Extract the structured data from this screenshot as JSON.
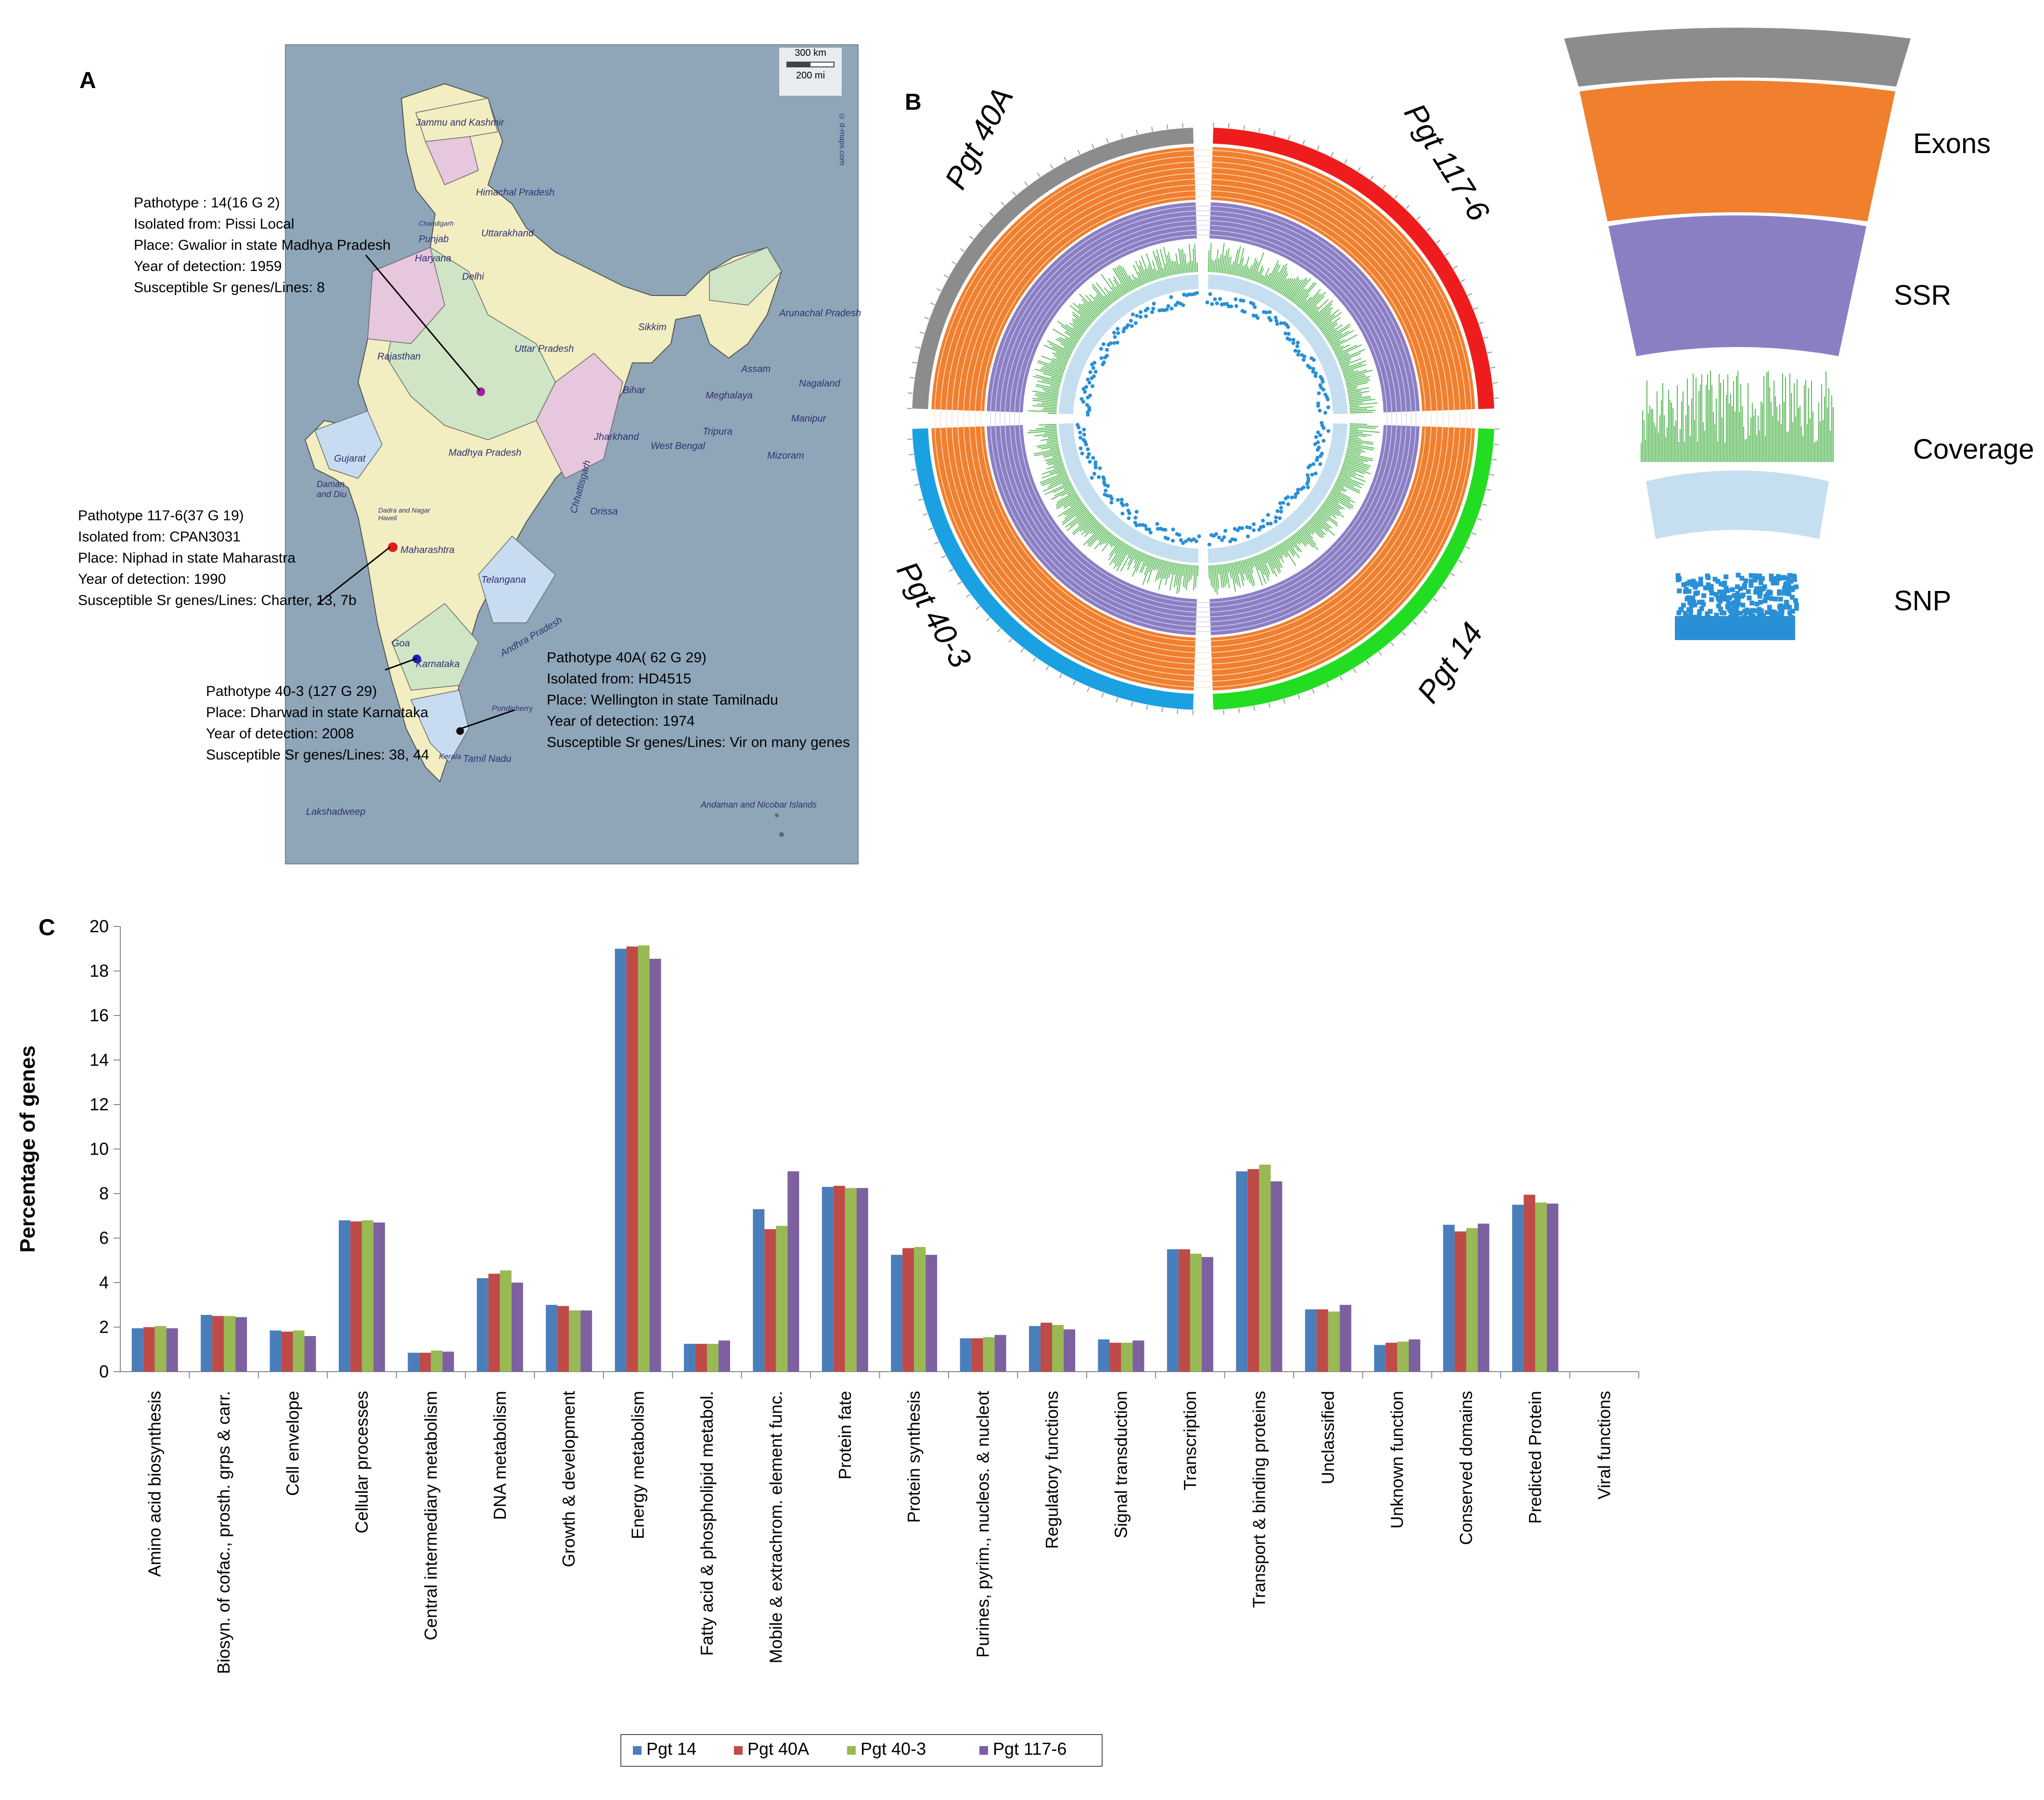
{
  "panels": {
    "a": "A",
    "b": "B",
    "c": "C"
  },
  "map": {
    "scale_km": "300 km",
    "scale_mi": "200 mi",
    "watermark": "© d-maps.com",
    "regions": [
      "Jammu and Kashmir",
      "Himachal Pradesh",
      "Chandigarh",
      "Punjab",
      "Uttarakhand",
      "Haryana",
      "Delhi",
      "Rajasthan",
      "Uttar Pradesh",
      "Sikkim",
      "Arunachal Pradesh",
      "Assam",
      "Nagaland",
      "Bihar",
      "Meghalaya",
      "Manipur",
      "Tripura",
      "Mizoram",
      "Jharkhand",
      "West Bengal",
      "Gujarat",
      "Madhya Pradesh",
      "Chhattisgarh",
      "Orissa",
      "Daman and Diu",
      "Dadra and Nagar Haveli",
      "Maharashtra",
      "Telangana",
      "Goa",
      "Karnataka",
      "Andhra Pradesh",
      "Pondicherry",
      "Kerala",
      "Tamil Nadu",
      "Lakshadweep",
      "Andaman and Nicobar Islands"
    ],
    "pathotypes": [
      {
        "lines": [
          "Pathotype : 14(16 G 2)",
          "Isolated from: Pissi Local",
          "Place: Gwalior in state  Madhya Pradesh",
          "Year of detection: 1959",
          "Susceptible Sr genes/Lines: 8"
        ]
      },
      {
        "lines": [
          "Pathotype 117-6(37 G 19)",
          "Isolated from: CPAN3031",
          "Place: Niphad in state  Maharastra",
          "Year of detection: 1990",
          "Susceptible Sr genes/Lines: Charter, 13, 7b"
        ]
      },
      {
        "lines": [
          "Pathotype 40-3 (127 G 29)",
          "Place: Dharwad in state Karnataka",
          "Year of detection: 2008",
          "Susceptible Sr genes/Lines: 38, 44"
        ]
      },
      {
        "lines": [
          "Pathotype 40A(  62 G 29)",
          "Isolated from: HD4515",
          "Place: Wellington in state  Tamilnadu",
          "Year of detection: 1974",
          "Susceptible Sr genes/Lines: Vir on many genes"
        ]
      }
    ]
  },
  "circos": {
    "genomes": [
      {
        "label": "Pgt  40A",
        "color": "#8c8c8c"
      },
      {
        "label": "Pgt  117-6",
        "color": "#ee1c1c"
      },
      {
        "label": "Pgt 14",
        "color": "#22dd22"
      },
      {
        "label": "Pgt  40-3",
        "color": "#1ba1e2"
      }
    ],
    "tracks": [
      "Exons",
      "SSR",
      "Coverage",
      "SNP"
    ],
    "track_colors": {
      "exons": "#f07f2e",
      "ssr": "#8b7fc4",
      "coverage": "#5dbb5d",
      "snp": "#2a90d6",
      "band": "#c6dff0"
    }
  },
  "chart_data": {
    "type": "bar",
    "ylabel": "Percentage of genes",
    "xlabel": "",
    "ylim": [
      0,
      20
    ],
    "yticks": [
      0,
      2,
      4,
      6,
      8,
      10,
      12,
      14,
      16,
      18,
      20
    ],
    "categories": [
      "Amino acid biosynthesis",
      "Biosyn. of cofac., prosth. grps & carr.",
      "Cell envelope",
      "Cellular processes",
      "Central intermediary metabolism",
      "DNA metabolism",
      "Growth & development",
      "Energy metabolism",
      "Fatty acid & phospholipid metabol.",
      "Mobile & extrachrom. element func.",
      "Protein fate",
      "Protein synthesis",
      "Purines, pyrim., nucleos. & nucleot",
      "Regulatory functions",
      "Signal transduction",
      "Transcription",
      "Transport & binding proteins",
      "Unclassified",
      "Unknown function",
      "Conserved domains",
      "Predicted Protein",
      "Viral functions"
    ],
    "series": [
      {
        "name": "Pgt 14",
        "color": "#4a7ebb",
        "values": [
          1.95,
          2.55,
          1.85,
          6.8,
          0.85,
          4.2,
          3.0,
          19.0,
          1.25,
          7.3,
          8.3,
          5.25,
          1.5,
          2.05,
          1.45,
          5.5,
          9.0,
          2.8,
          1.2,
          6.6,
          7.5,
          0
        ]
      },
      {
        "name": "Pgt  40A",
        "color": "#be4b48",
        "values": [
          2.0,
          2.5,
          1.8,
          6.75,
          0.85,
          4.4,
          2.95,
          19.1,
          1.25,
          6.4,
          8.35,
          5.55,
          1.5,
          2.2,
          1.3,
          5.5,
          9.1,
          2.8,
          1.3,
          6.3,
          7.95,
          0
        ]
      },
      {
        "name": "Pgt  40-3",
        "color": "#98b954",
        "values": [
          2.05,
          2.5,
          1.85,
          6.8,
          0.95,
          4.55,
          2.75,
          19.15,
          1.25,
          6.55,
          8.25,
          5.6,
          1.55,
          2.1,
          1.3,
          5.3,
          9.3,
          2.7,
          1.35,
          6.45,
          7.6,
          0
        ]
      },
      {
        "name": "Pgt 117-6",
        "color": "#7d60a0",
        "values": [
          1.95,
          2.45,
          1.6,
          6.7,
          0.9,
          4.0,
          2.75,
          18.55,
          1.4,
          9.0,
          8.25,
          5.25,
          1.65,
          1.9,
          1.4,
          5.15,
          8.55,
          3.0,
          1.45,
          6.65,
          7.55,
          0
        ]
      }
    ]
  }
}
